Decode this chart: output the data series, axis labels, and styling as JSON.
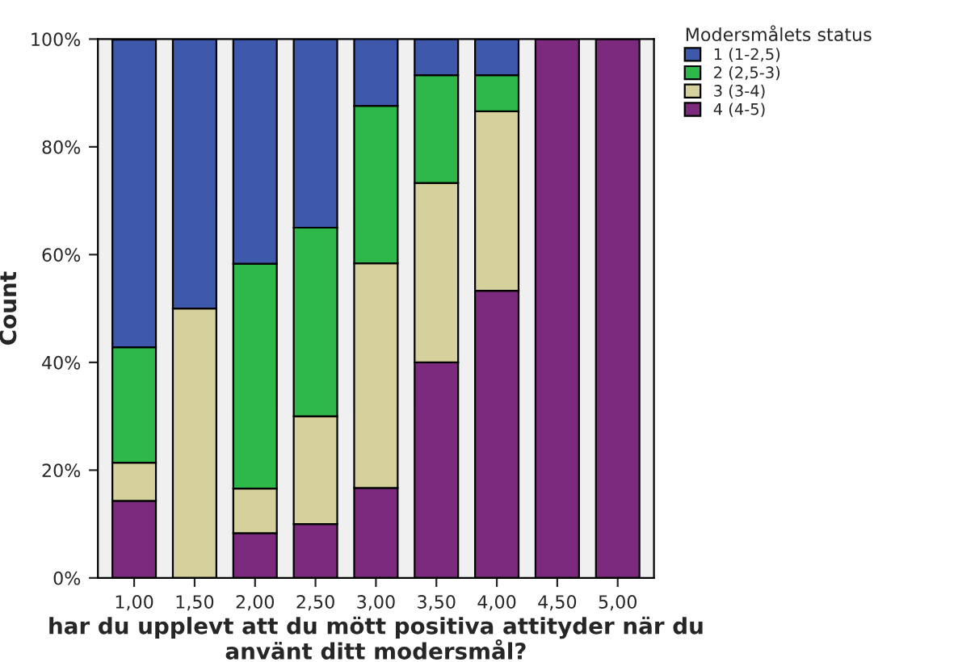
{
  "chart_data": {
    "type": "bar",
    "stacked": true,
    "xlabel": "har du upplevt att du mött positiva attityder när du använt ditt modersmål?",
    "ylabel": "Count",
    "legend_title": "Modersmålets status",
    "legend": "top right",
    "grid": false,
    "categories": [
      "1,00",
      "1,50",
      "2,00",
      "2,50",
      "3,00",
      "3,50",
      "4,00",
      "4,50",
      "5,00"
    ],
    "ylim": [
      0,
      100
    ],
    "yticks": [
      {
        "value": 0,
        "label": "0%"
      },
      {
        "value": 20,
        "label": "20%"
      },
      {
        "value": 40,
        "label": "40%"
      },
      {
        "value": 60,
        "label": "60%"
      },
      {
        "value": 80,
        "label": "80%"
      },
      {
        "value": 100,
        "label": "100%"
      }
    ],
    "series": [
      {
        "name": "4 (4-5)",
        "color": "#7b2a7d",
        "values": [
          14.3,
          null,
          8.3,
          10,
          16.7,
          40,
          53.3,
          100,
          100
        ]
      },
      {
        "name": "3 (3-4)",
        "color": "#d6d19c",
        "values": [
          7.1,
          50,
          8.3,
          20,
          41.7,
          33.3,
          33.3,
          null,
          null
        ]
      },
      {
        "name": "2 (2,5-3)",
        "color": "#2eb84a",
        "values": [
          21.4,
          null,
          41.7,
          35,
          29.2,
          20,
          6.7,
          null,
          null
        ]
      },
      {
        "name": "1 (1-2,5)",
        "color": "#3e58ac",
        "values": [
          57.1,
          50,
          41.7,
          35,
          12.5,
          6.7,
          6.7,
          null,
          null
        ]
      }
    ]
  }
}
